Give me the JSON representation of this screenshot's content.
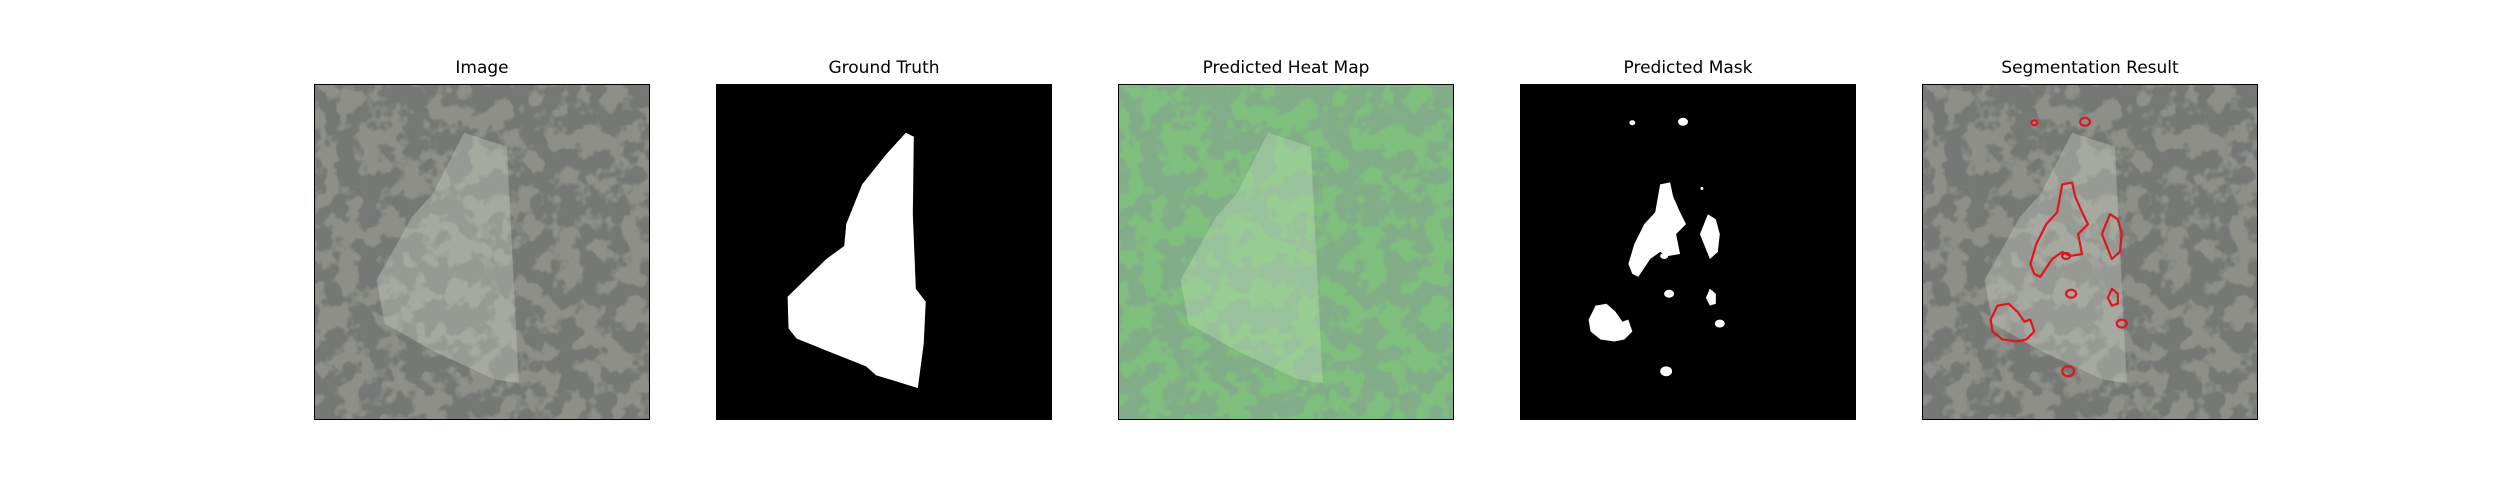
{
  "panels": [
    {
      "title": "Image"
    },
    {
      "title": "Ground Truth"
    },
    {
      "title": "Predicted Heat Map"
    },
    {
      "title": "Predicted Mask"
    },
    {
      "title": "Segmentation Result"
    }
  ],
  "colors": {
    "background": "#ffffff",
    "frame": "#000000",
    "texture_base": "#8d8f88",
    "texture_dark": "#2f322f",
    "mask_white": "#ffffff",
    "mask_black": "#000000",
    "heatmap_tint": "#6fbe74",
    "contour": "#e0141a"
  }
}
